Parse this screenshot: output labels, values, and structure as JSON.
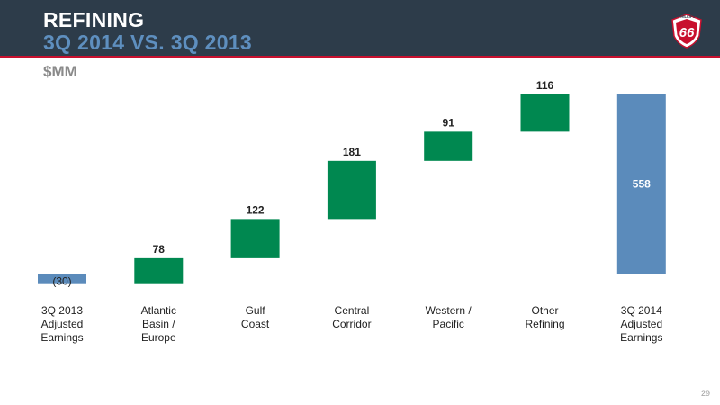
{
  "slide": {
    "title": "REFINING",
    "subtitle": "3Q 2014 VS. 3Q 2013",
    "units": "$MM",
    "page_number": "29",
    "logo": {
      "icon": "phillips-66-shield-icon",
      "brand_text": "PHILLIPS",
      "number_text": "66"
    }
  },
  "colors": {
    "header_bg": "#2d3c4a",
    "accent_red": "#c8102e",
    "subtitle_blue": "#5e8fbf",
    "positive_bar": "#008850",
    "total_bar": "#5b8bbb"
  },
  "chart_data": {
    "type": "bar",
    "subtype": "waterfall",
    "title": "",
    "xlabel": "",
    "ylabel": "",
    "ylim": [
      -40,
      560
    ],
    "grid": false,
    "categories": [
      [
        "3Q 2013",
        "Adjusted",
        "Earnings"
      ],
      [
        "Atlantic",
        "Basin /",
        "Europe"
      ],
      [
        "Gulf",
        "Coast"
      ],
      [
        "Central",
        "Corridor"
      ],
      [
        "Western /",
        "Pacific"
      ],
      [
        "Other",
        "Refining"
      ],
      [
        "3Q 2014",
        "Adjusted",
        "Earnings"
      ]
    ],
    "values": [
      -30,
      78,
      122,
      181,
      91,
      116,
      558
    ],
    "labels": [
      "(30)",
      "78",
      "122",
      "181",
      "91",
      "116",
      "558"
    ],
    "kinds": [
      "total",
      "delta",
      "delta",
      "delta",
      "delta",
      "delta",
      "total"
    ]
  }
}
